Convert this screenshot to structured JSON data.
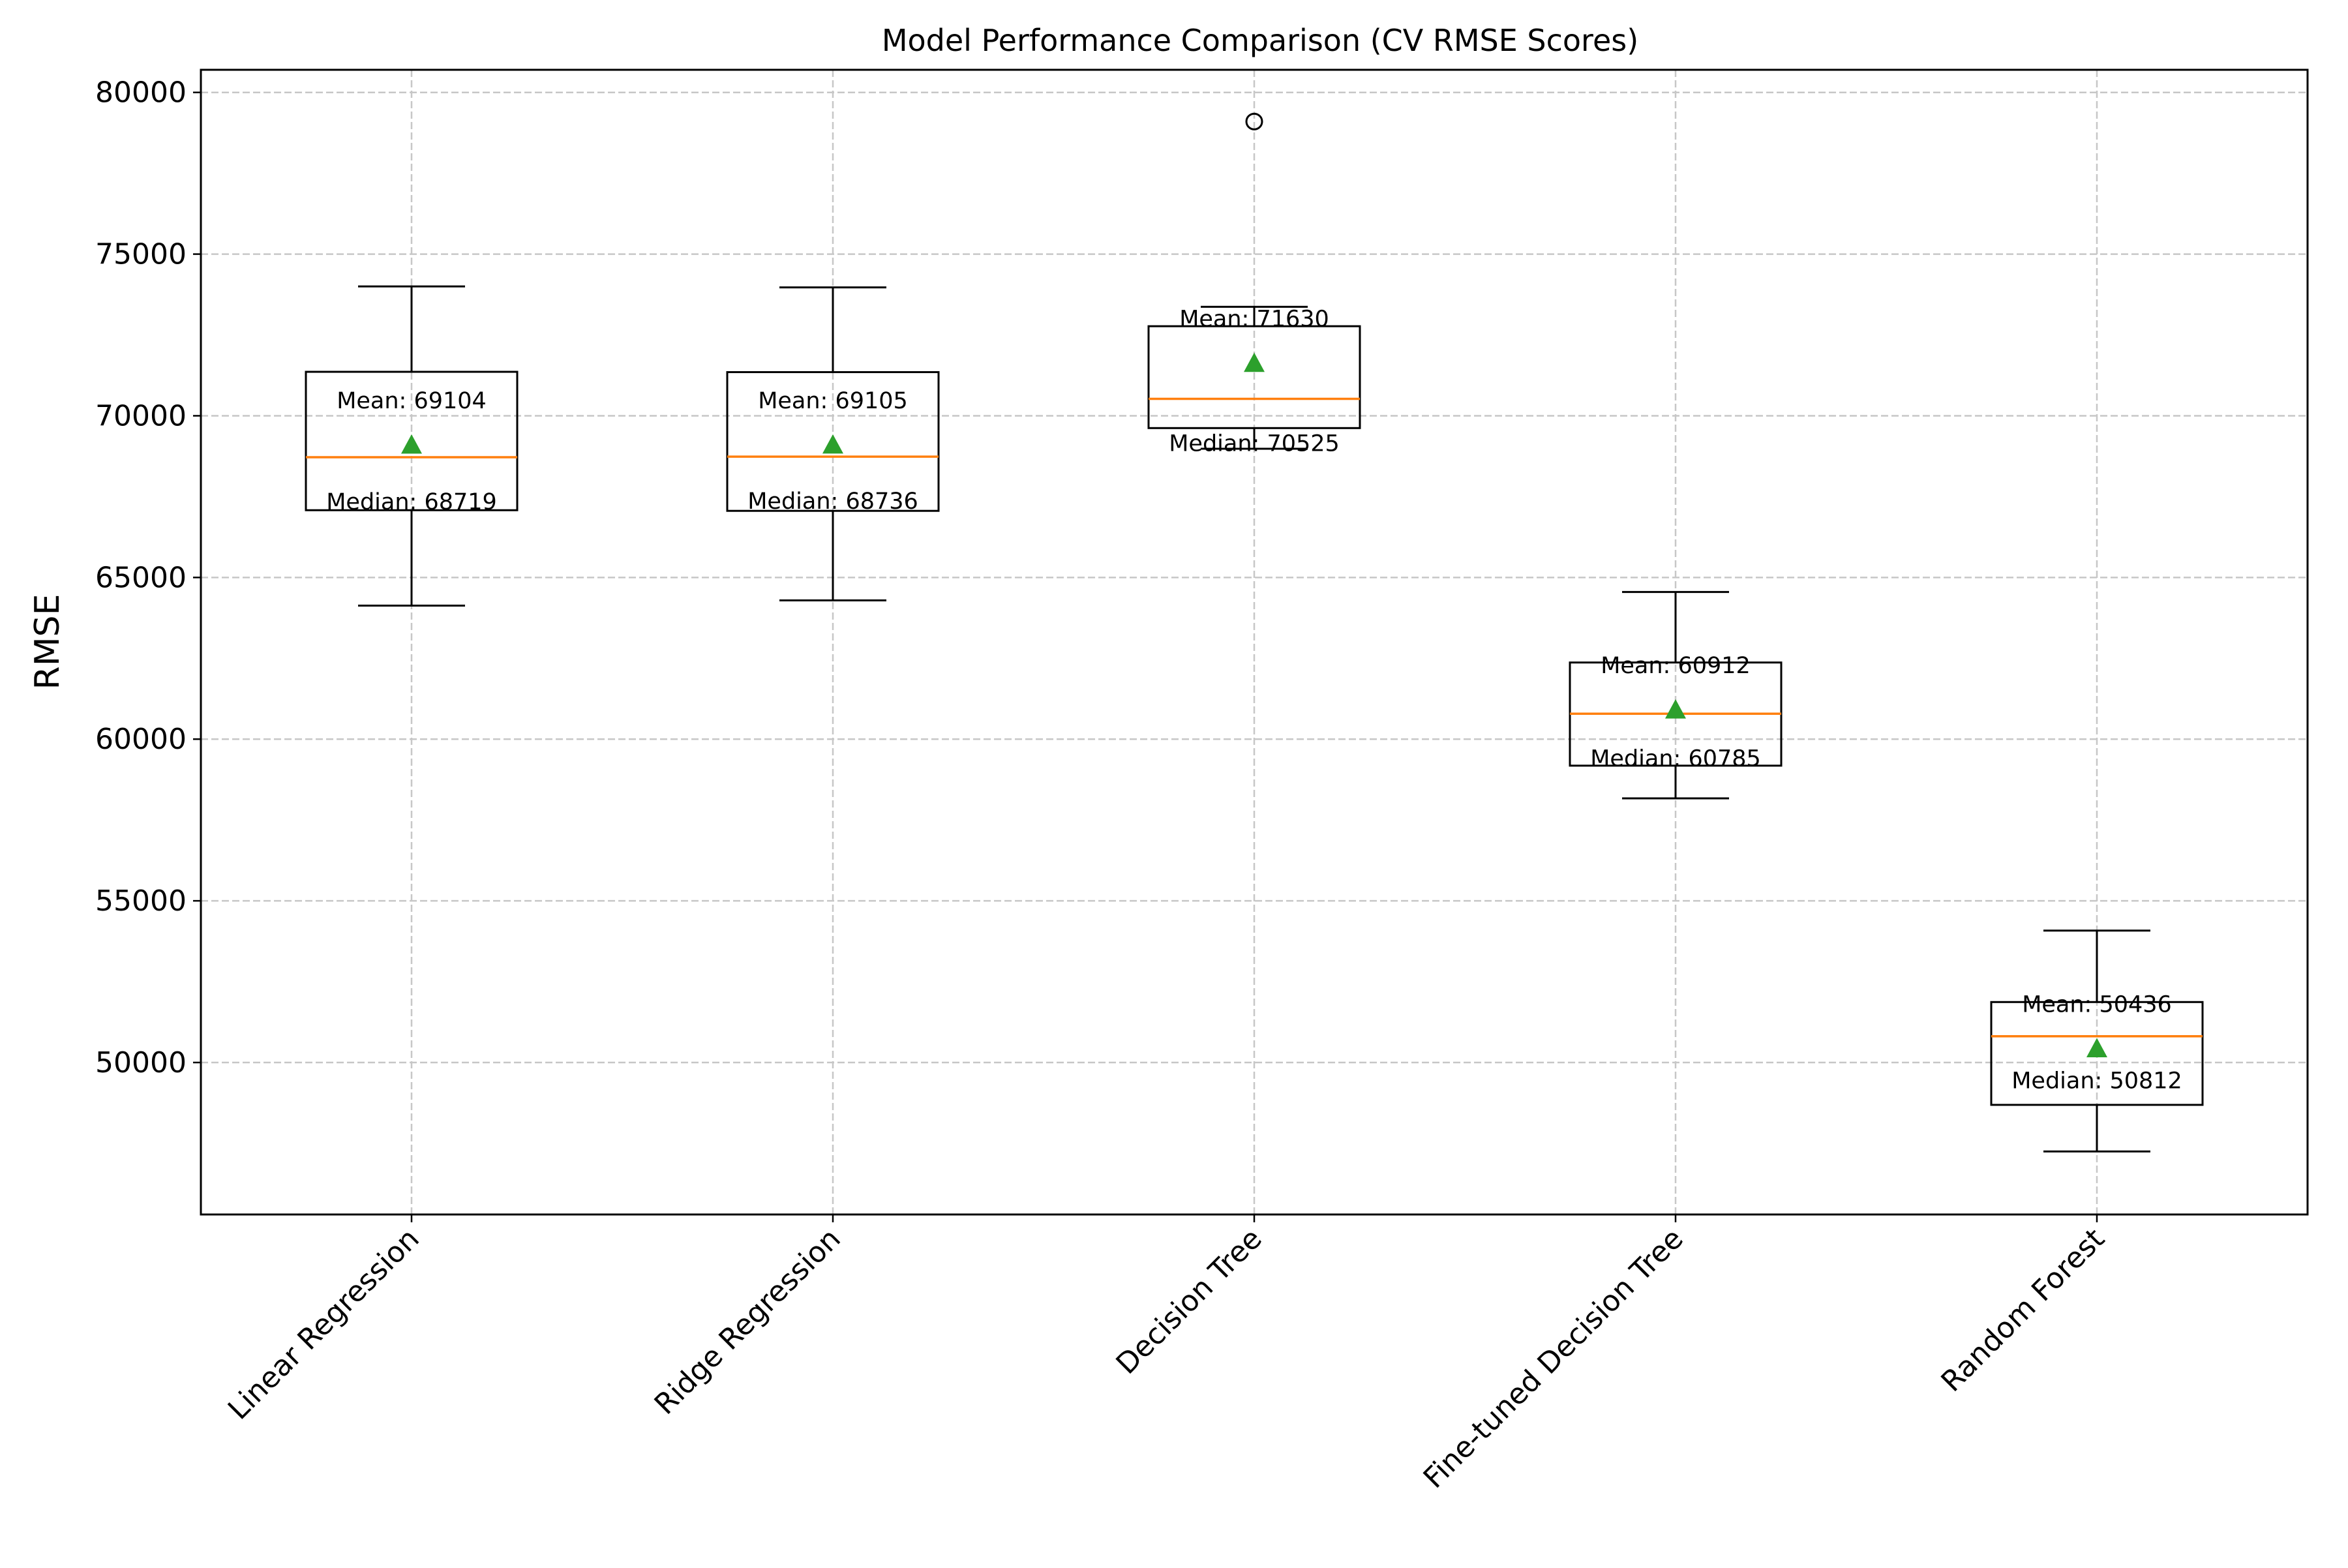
{
  "chart_data": {
    "type": "box",
    "title": "Model Performance Comparison (CV RMSE Scores)",
    "xlabel": "",
    "ylabel": "RMSE",
    "ylim": [
      45300,
      80700
    ],
    "yticks": [
      50000,
      55000,
      60000,
      65000,
      70000,
      75000,
      80000
    ],
    "ytick_labels": [
      "50000",
      "55000",
      "60000",
      "65000",
      "70000",
      "75000",
      "80000"
    ],
    "grid": true,
    "grid_style": "dashed",
    "colors": {
      "box": "#000000",
      "median": "#ff7f0e",
      "mean_marker": "#2ca02c",
      "grid": "#c7c7c7"
    },
    "categories": [
      "Linear Regression",
      "Ridge Regression",
      "Decision Tree",
      "Fine-tuned Decision Tree",
      "Random Forest"
    ],
    "boxes": [
      {
        "label": "Linear Regression",
        "whisker_low": 64130,
        "q1": 67080,
        "median": 68719,
        "q3": 71360,
        "whisker_high": 74000,
        "mean": 69104,
        "outliers": [],
        "mean_text": "Mean: 69104",
        "median_text": "Median: 68719"
      },
      {
        "label": "Ridge Regression",
        "whisker_low": 64290,
        "q1": 67060,
        "median": 68736,
        "q3": 71350,
        "whisker_high": 73970,
        "mean": 69105,
        "outliers": [],
        "mean_text": "Mean: 69105",
        "median_text": "Median: 68736"
      },
      {
        "label": "Decision Tree",
        "whisker_low": 68980,
        "q1": 69620,
        "median": 70525,
        "q3": 72770,
        "whisker_high": 73370,
        "mean": 71630,
        "outliers": [
          79100
        ],
        "mean_text": "Mean: 71630",
        "median_text": "Median: 70525"
      },
      {
        "label": "Fine-tuned Decision Tree",
        "whisker_low": 58170,
        "q1": 59180,
        "median": 60785,
        "q3": 62370,
        "whisker_high": 64550,
        "mean": 60912,
        "outliers": [],
        "mean_text": "Mean: 60912",
        "median_text": "Median: 60785"
      },
      {
        "label": "Random Forest",
        "whisker_low": 47250,
        "q1": 48690,
        "median": 50812,
        "q3": 51870,
        "whisker_high": 54080,
        "mean": 50436,
        "outliers": [],
        "mean_text": "Mean: 50436",
        "median_text": "Median: 50812"
      }
    ]
  }
}
